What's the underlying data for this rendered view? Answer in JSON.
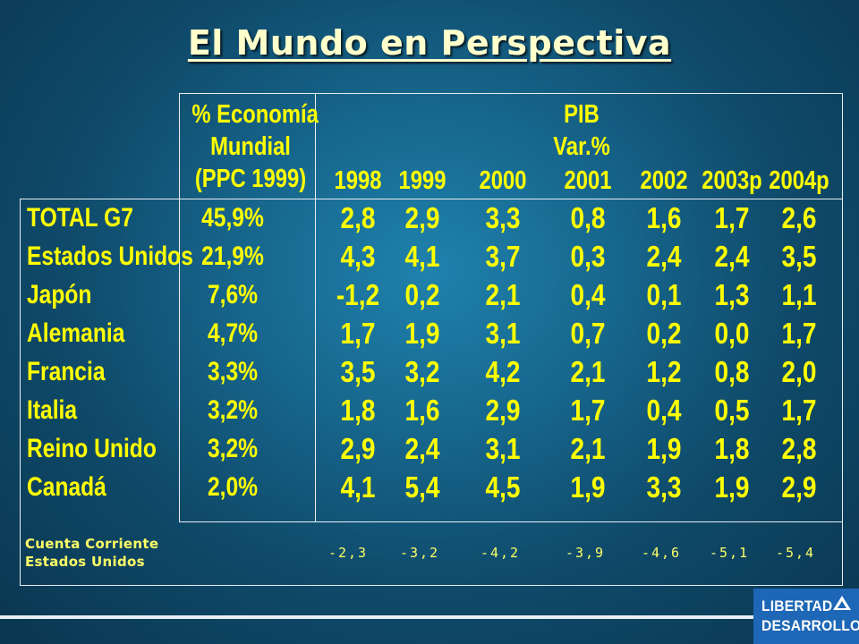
{
  "title": "El Mundo en Perspectiva",
  "headers": {
    "economy_share": [
      "% Economía",
      "Mundial",
      "(PPC 1999)"
    ],
    "pib": [
      "PIB",
      "Var.%"
    ],
    "years": [
      "1998",
      "1999",
      "2000",
      "2001",
      "2002",
      "2003p",
      "2004p"
    ]
  },
  "rows": [
    {
      "country": "TOTAL G7",
      "share": "45,9%",
      "values": [
        "2,8",
        "2,9",
        "3,3",
        "0,8",
        "1,6",
        "1,7",
        "2,6"
      ]
    },
    {
      "country": "Estados Unidos",
      "share": "21,9%",
      "values": [
        "4,3",
        "4,1",
        "3,7",
        "0,3",
        "2,4",
        "2,4",
        "3,5"
      ]
    },
    {
      "country": "Japón",
      "share": "7,6%",
      "values": [
        "-1,2",
        "0,2",
        "2,1",
        "0,4",
        "0,1",
        "1,3",
        "1,1"
      ]
    },
    {
      "country": "Alemania",
      "share": "4,7%",
      "values": [
        "1,7",
        "1,9",
        "3,1",
        "0,7",
        "0,2",
        "0,0",
        "1,7"
      ]
    },
    {
      "country": "Francia",
      "share": "3,3%",
      "values": [
        "3,5",
        "3,2",
        "4,2",
        "2,1",
        "1,2",
        "0,8",
        "2,0"
      ]
    },
    {
      "country": "Italia",
      "share": "3,2%",
      "values": [
        "1,8",
        "1,6",
        "2,9",
        "1,7",
        "0,4",
        "0,5",
        "1,7"
      ]
    },
    {
      "country": "Reino Unido",
      "share": "3,2%",
      "values": [
        "2,9",
        "2,4",
        "3,1",
        "2,1",
        "1,9",
        "1,8",
        "2,8"
      ]
    },
    {
      "country": "Canadá",
      "share": "2,0%",
      "values": [
        "4,1",
        "5,4",
        "4,5",
        "1,9",
        "3,3",
        "1,9",
        "2,9"
      ]
    }
  ],
  "footer": {
    "label": [
      "Cuenta Corriente",
      "Estados Unidos"
    ],
    "values": [
      "-2,3",
      "-3,2",
      "-4,2",
      "-3,9",
      "-4,6",
      "-5,1",
      "-5,4"
    ]
  },
  "logo": {
    "line1": "LIBERTAD",
    "line2": "DESARROLLO"
  },
  "colors": {
    "text": "#ffff00",
    "title": "#ffffcc",
    "background": "#17678e",
    "logo_bg": "#1e67b6"
  }
}
